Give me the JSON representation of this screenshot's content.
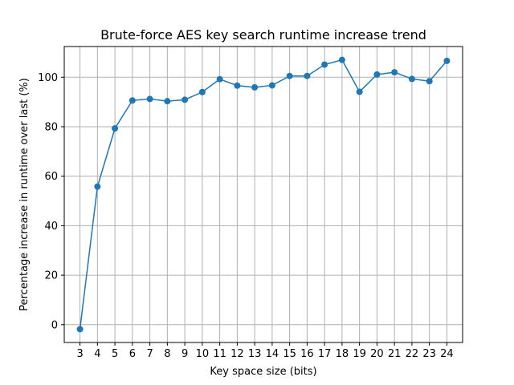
{
  "chart_data": {
    "type": "line",
    "title": "Brute-force AES key search runtime increase trend",
    "xlabel": "Key space size (bits)",
    "ylabel": "Percentage increase in runtime over last (%)",
    "x": [
      3,
      4,
      5,
      6,
      7,
      8,
      9,
      10,
      11,
      12,
      13,
      14,
      15,
      16,
      17,
      18,
      19,
      20,
      21,
      22,
      23,
      24
    ],
    "series": [
      {
        "name": "",
        "color": "#1f77b4",
        "marker": "circle",
        "values": [
          -1.8,
          55.8,
          79.3,
          90.6,
          91.2,
          90.3,
          90.9,
          94.0,
          99.2,
          96.6,
          95.9,
          96.7,
          100.5,
          100.5,
          105.1,
          107.0,
          94.1,
          101.1,
          102.0,
          99.3,
          98.4,
          106.6
        ]
      }
    ],
    "xlim": [
      2.1,
      24.9
    ],
    "ylim": [
      -7.2,
      112.4
    ],
    "yticks": [
      0,
      20,
      40,
      60,
      80,
      100
    ],
    "xticks": [
      3,
      4,
      5,
      6,
      7,
      8,
      9,
      10,
      11,
      12,
      13,
      14,
      15,
      16,
      17,
      18,
      19,
      20,
      21,
      22,
      23,
      24
    ],
    "grid": true,
    "legend": "none"
  }
}
